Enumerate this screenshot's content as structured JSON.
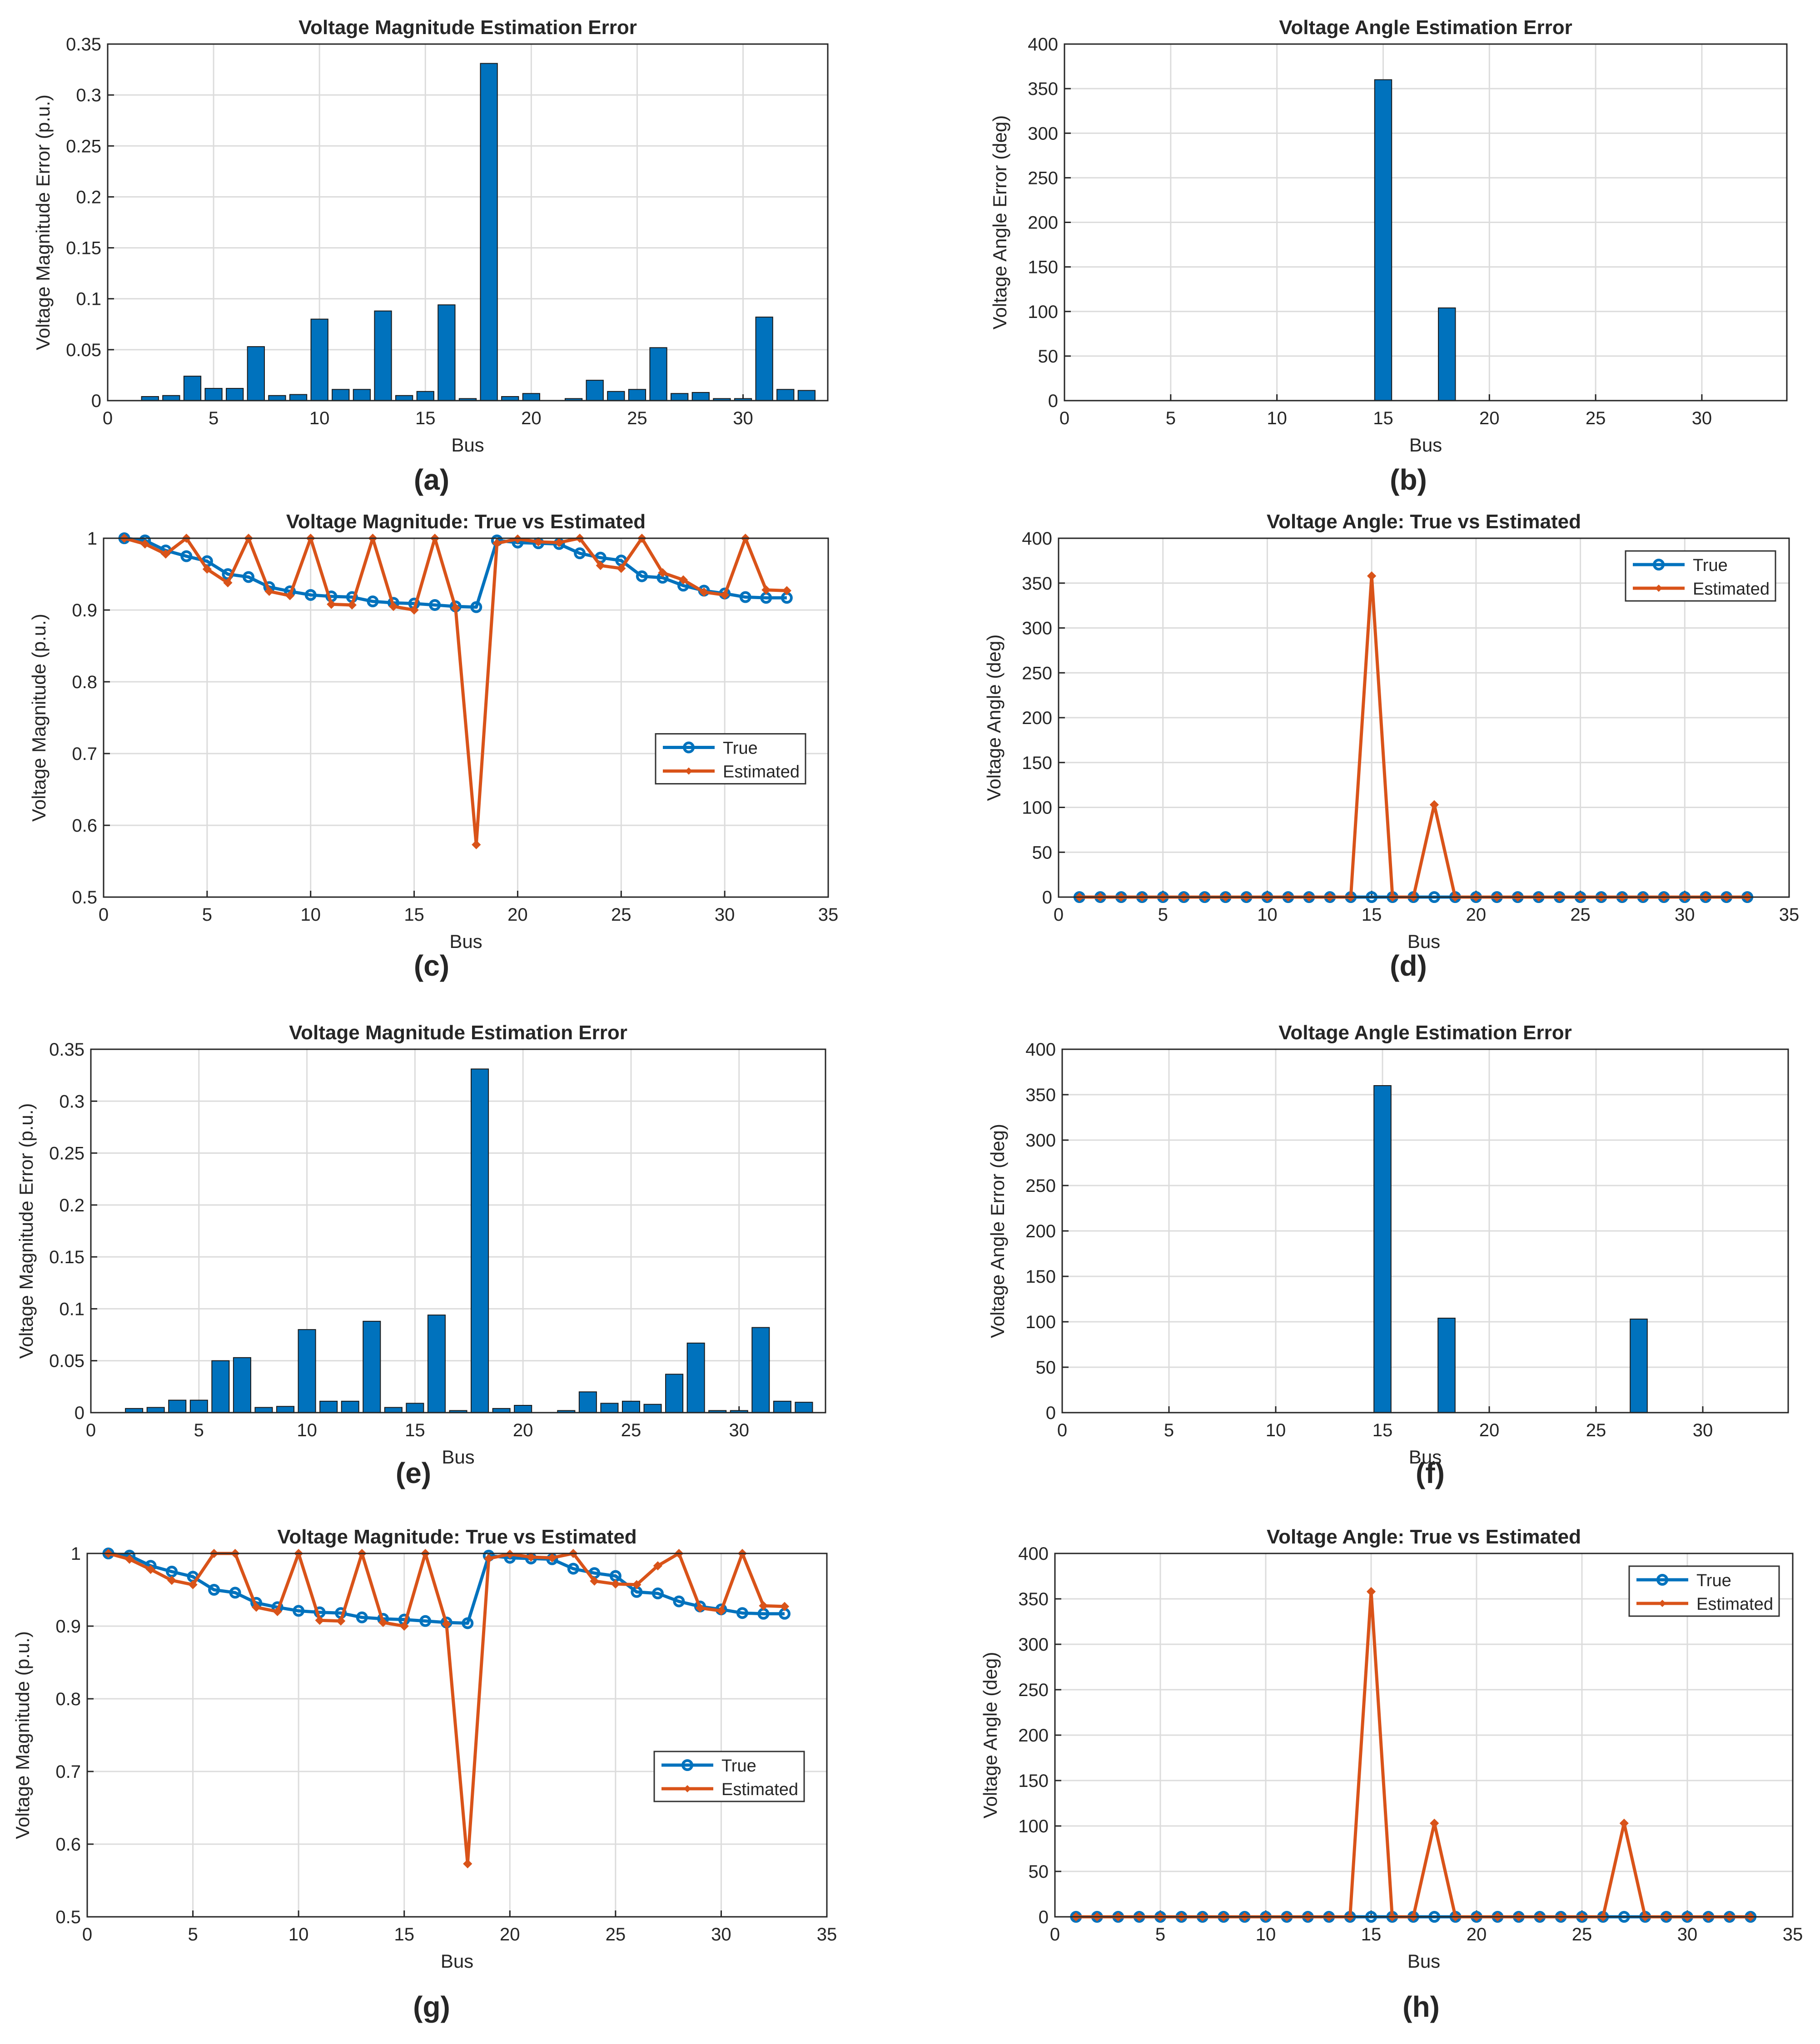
{
  "colors": {
    "true_series": "#0072BD",
    "est_series": "#D95319",
    "grid": "#dcdcdc",
    "axis": "#262626"
  },
  "chart_data": [
    {
      "type": "bar",
      "panel_label": "(a)",
      "title": "Voltage Magnitude Estimation Error",
      "xlabel": "Bus",
      "ylabel": "Voltage Magnitude Error (p.u.)",
      "xlim": [
        0,
        34
      ],
      "ylim": [
        0,
        0.35
      ],
      "xticks": [
        "0",
        "5",
        "10",
        "15",
        "20",
        "25",
        "30"
      ],
      "yticks": [
        "0",
        "0.05",
        "0.1",
        "0.15",
        "0.2",
        "0.25",
        "0.3",
        "0.35"
      ],
      "x": [
        1,
        2,
        3,
        4,
        5,
        6,
        7,
        8,
        9,
        10,
        11,
        12,
        13,
        14,
        15,
        16,
        17,
        18,
        19,
        20,
        21,
        22,
        23,
        24,
        25,
        26,
        27,
        28,
        29,
        30,
        31,
        32,
        33
      ],
      "values": [
        0,
        0.004,
        0.005,
        0.024,
        0.012,
        0.012,
        0.053,
        0.005,
        0.006,
        0.08,
        0.011,
        0.011,
        0.088,
        0.005,
        0.009,
        0.094,
        0.002,
        0.331,
        0.004,
        0.007,
        0,
        0.002,
        0.02,
        0.009,
        0.011,
        0.052,
        0.007,
        0.008,
        0.002,
        0.002,
        0.082,
        0.011,
        0.01
      ]
    },
    {
      "type": "bar",
      "panel_label": "(b)",
      "title": "Voltage Angle Estimation Error",
      "xlabel": "Bus",
      "ylabel": "Voltage Angle Error (deg)",
      "xlim": [
        0,
        34
      ],
      "ylim": [
        0,
        400
      ],
      "xticks": [
        "0",
        "5",
        "10",
        "15",
        "20",
        "25",
        "30"
      ],
      "yticks": [
        "0",
        "50",
        "100",
        "150",
        "200",
        "250",
        "300",
        "350",
        "400"
      ],
      "x": [
        1,
        2,
        3,
        4,
        5,
        6,
        7,
        8,
        9,
        10,
        11,
        12,
        13,
        14,
        15,
        16,
        17,
        18,
        19,
        20,
        21,
        22,
        23,
        24,
        25,
        26,
        27,
        28,
        29,
        30,
        31,
        32,
        33
      ],
      "values": [
        0,
        0,
        0,
        0,
        0,
        0,
        0,
        0,
        0,
        0,
        0,
        0,
        0,
        0,
        360,
        0,
        0,
        104,
        0,
        0,
        0,
        0,
        0,
        0,
        0,
        0,
        0,
        0,
        0,
        0,
        0,
        0,
        0
      ]
    },
    {
      "type": "line",
      "panel_label": "(c)",
      "title": "Voltage Magnitude: True vs Estimated",
      "xlabel": "Bus",
      "ylabel": "Voltage Magnitude (p.u.)",
      "xlim": [
        0,
        35
      ],
      "ylim": [
        0.5,
        1
      ],
      "xticks": [
        "0",
        "5",
        "10",
        "15",
        "20",
        "25",
        "30",
        "35"
      ],
      "yticks": [
        "0.5",
        "0.6",
        "0.7",
        "0.8",
        "0.9",
        "1"
      ],
      "legend": "center-right",
      "x": [
        1,
        2,
        3,
        4,
        5,
        6,
        7,
        8,
        9,
        10,
        11,
        12,
        13,
        14,
        15,
        16,
        17,
        18,
        19,
        20,
        21,
        22,
        23,
        24,
        25,
        26,
        27,
        28,
        29,
        30,
        31,
        32,
        33
      ],
      "series": [
        {
          "name": "True",
          "values": [
            1,
            0.997,
            0.983,
            0.975,
            0.968,
            0.95,
            0.946,
            0.932,
            0.926,
            0.921,
            0.919,
            0.918,
            0.912,
            0.91,
            0.909,
            0.907,
            0.905,
            0.904,
            0.997,
            0.994,
            0.993,
            0.992,
            0.979,
            0.973,
            0.969,
            0.947,
            0.945,
            0.934,
            0.927,
            0.923,
            0.918,
            0.917,
            0.917
          ]
        },
        {
          "name": "Estimated",
          "values": [
            1,
            0.992,
            0.978,
            1,
            0.957,
            0.938,
            1,
            0.926,
            0.92,
            1,
            0.908,
            0.907,
            1,
            0.905,
            0.9,
            1,
            0.903,
            0.573,
            0.993,
            0.999,
            0.995,
            0.994,
            1,
            0.962,
            0.958,
            1,
            0.952,
            0.942,
            0.925,
            0.921,
            1,
            0.928,
            0.927
          ]
        }
      ]
    },
    {
      "type": "line",
      "panel_label": "(d)",
      "title": "Voltage Angle: True vs Estimated",
      "xlabel": "Bus",
      "ylabel": "Voltage Angle (deg)",
      "xlim": [
        0,
        35
      ],
      "ylim": [
        0,
        400
      ],
      "xticks": [
        "0",
        "5",
        "10",
        "15",
        "20",
        "25",
        "30",
        "35"
      ],
      "yticks": [
        "0",
        "50",
        "100",
        "150",
        "200",
        "250",
        "300",
        "350",
        "400"
      ],
      "legend": "top-right",
      "x": [
        1,
        2,
        3,
        4,
        5,
        6,
        7,
        8,
        9,
        10,
        11,
        12,
        13,
        14,
        15,
        16,
        17,
        18,
        19,
        20,
        21,
        22,
        23,
        24,
        25,
        26,
        27,
        28,
        29,
        30,
        31,
        32,
        33
      ],
      "series": [
        {
          "name": "True",
          "values": [
            0,
            0,
            0,
            0,
            0,
            0,
            0,
            0,
            0,
            0,
            0,
            0,
            0,
            0,
            0,
            0,
            0,
            0,
            0,
            0,
            0,
            0,
            0,
            0,
            0,
            0,
            0,
            0,
            0,
            0,
            0,
            0,
            0
          ]
        },
        {
          "name": "Estimated",
          "values": [
            0,
            0,
            0,
            0,
            0,
            0,
            0,
            0,
            0,
            0,
            0,
            0,
            0,
            0,
            358,
            0,
            0,
            103,
            0,
            0,
            0,
            0,
            0,
            0,
            0,
            0,
            0,
            0,
            0,
            0,
            0,
            0,
            0
          ]
        }
      ]
    },
    {
      "type": "bar",
      "panel_label": "(e)",
      "title": "Voltage Magnitude Estimation Error",
      "xlabel": "Bus",
      "ylabel": "Voltage Magnitude Error (p.u.)",
      "xlim": [
        0,
        34
      ],
      "ylim": [
        0,
        0.35
      ],
      "xticks": [
        "0",
        "5",
        "10",
        "15",
        "20",
        "25",
        "30"
      ],
      "yticks": [
        "0",
        "0.05",
        "0.1",
        "0.15",
        "0.2",
        "0.25",
        "0.3",
        "0.35"
      ],
      "x": [
        1,
        2,
        3,
        4,
        5,
        6,
        7,
        8,
        9,
        10,
        11,
        12,
        13,
        14,
        15,
        16,
        17,
        18,
        19,
        20,
        21,
        22,
        23,
        24,
        25,
        26,
        27,
        28,
        29,
        30,
        31,
        32,
        33
      ],
      "values": [
        0,
        0.004,
        0.005,
        0.012,
        0.012,
        0.05,
        0.053,
        0.005,
        0.006,
        0.08,
        0.011,
        0.011,
        0.088,
        0.005,
        0.009,
        0.094,
        0.002,
        0.331,
        0.004,
        0.007,
        0,
        0.002,
        0.02,
        0.009,
        0.011,
        0.008,
        0.037,
        0.067,
        0.002,
        0.002,
        0.082,
        0.011,
        0.01
      ]
    },
    {
      "type": "bar",
      "panel_label": "(f)",
      "title": "Voltage Angle Estimation Error",
      "xlabel": "Bus",
      "ylabel": "Voltage Angle Error (deg)",
      "xlim": [
        0,
        34
      ],
      "ylim": [
        0,
        400
      ],
      "xticks": [
        "0",
        "5",
        "10",
        "15",
        "20",
        "25",
        "30"
      ],
      "yticks": [
        "0",
        "50",
        "100",
        "150",
        "200",
        "250",
        "300",
        "350",
        "400"
      ],
      "x": [
        1,
        2,
        3,
        4,
        5,
        6,
        7,
        8,
        9,
        10,
        11,
        12,
        13,
        14,
        15,
        16,
        17,
        18,
        19,
        20,
        21,
        22,
        23,
        24,
        25,
        26,
        27,
        28,
        29,
        30,
        31,
        32,
        33
      ],
      "values": [
        0,
        0,
        0,
        0,
        0,
        0,
        0,
        0,
        0,
        0,
        0,
        0,
        0,
        0,
        360,
        0,
        0,
        104,
        0,
        0,
        0,
        0,
        0,
        0,
        0,
        0,
        103,
        0,
        0,
        0,
        0,
        0,
        0
      ]
    },
    {
      "type": "line",
      "panel_label": "(g)",
      "title": "Voltage Magnitude: True vs Estimated",
      "xlabel": "Bus",
      "ylabel": "Voltage Magnitude (p.u.)",
      "xlim": [
        0,
        35
      ],
      "ylim": [
        0.5,
        1
      ],
      "xticks": [
        "0",
        "5",
        "10",
        "15",
        "20",
        "25",
        "30",
        "35"
      ],
      "yticks": [
        "0.5",
        "0.6",
        "0.7",
        "0.8",
        "0.9",
        "1"
      ],
      "legend": "center-right",
      "x": [
        1,
        2,
        3,
        4,
        5,
        6,
        7,
        8,
        9,
        10,
        11,
        12,
        13,
        14,
        15,
        16,
        17,
        18,
        19,
        20,
        21,
        22,
        23,
        24,
        25,
        26,
        27,
        28,
        29,
        30,
        31,
        32,
        33
      ],
      "series": [
        {
          "name": "True",
          "values": [
            1,
            0.997,
            0.983,
            0.975,
            0.968,
            0.95,
            0.946,
            0.932,
            0.926,
            0.921,
            0.919,
            0.918,
            0.912,
            0.91,
            0.909,
            0.907,
            0.905,
            0.904,
            0.997,
            0.994,
            0.993,
            0.992,
            0.979,
            0.973,
            0.969,
            0.947,
            0.945,
            0.934,
            0.927,
            0.923,
            0.918,
            0.917,
            0.917
          ]
        },
        {
          "name": "Estimated",
          "values": [
            1,
            0.992,
            0.978,
            0.963,
            0.957,
            1,
            1,
            0.926,
            0.92,
            1,
            0.908,
            0.907,
            1,
            0.905,
            0.9,
            1,
            0.903,
            0.573,
            0.993,
            0.999,
            0.995,
            0.994,
            1,
            0.962,
            0.958,
            0.957,
            0.983,
            1,
            0.925,
            0.921,
            1,
            0.928,
            0.927
          ]
        }
      ]
    },
    {
      "type": "line",
      "panel_label": "(h)",
      "title": "Voltage Angle: True vs Estimated",
      "xlabel": "Bus",
      "ylabel": "Voltage Angle (deg)",
      "xlim": [
        0,
        35
      ],
      "ylim": [
        0,
        400
      ],
      "xticks": [
        "0",
        "5",
        "10",
        "15",
        "20",
        "25",
        "30",
        "35"
      ],
      "yticks": [
        "0",
        "50",
        "100",
        "150",
        "200",
        "250",
        "300",
        "350",
        "400"
      ],
      "legend": "top-right",
      "x": [
        1,
        2,
        3,
        4,
        5,
        6,
        7,
        8,
        9,
        10,
        11,
        12,
        13,
        14,
        15,
        16,
        17,
        18,
        19,
        20,
        21,
        22,
        23,
        24,
        25,
        26,
        27,
        28,
        29,
        30,
        31,
        32,
        33
      ],
      "series": [
        {
          "name": "True",
          "values": [
            0,
            0,
            0,
            0,
            0,
            0,
            0,
            0,
            0,
            0,
            0,
            0,
            0,
            0,
            0,
            0,
            0,
            0,
            0,
            0,
            0,
            0,
            0,
            0,
            0,
            0,
            0,
            0,
            0,
            0,
            0,
            0,
            0
          ]
        },
        {
          "name": "Estimated",
          "values": [
            0,
            0,
            0,
            0,
            0,
            0,
            0,
            0,
            0,
            0,
            0,
            0,
            0,
            0,
            358,
            0,
            0,
            103,
            0,
            0,
            0,
            0,
            0,
            0,
            0,
            0,
            103,
            0,
            0,
            0,
            0,
            0,
            0
          ]
        }
      ]
    }
  ]
}
